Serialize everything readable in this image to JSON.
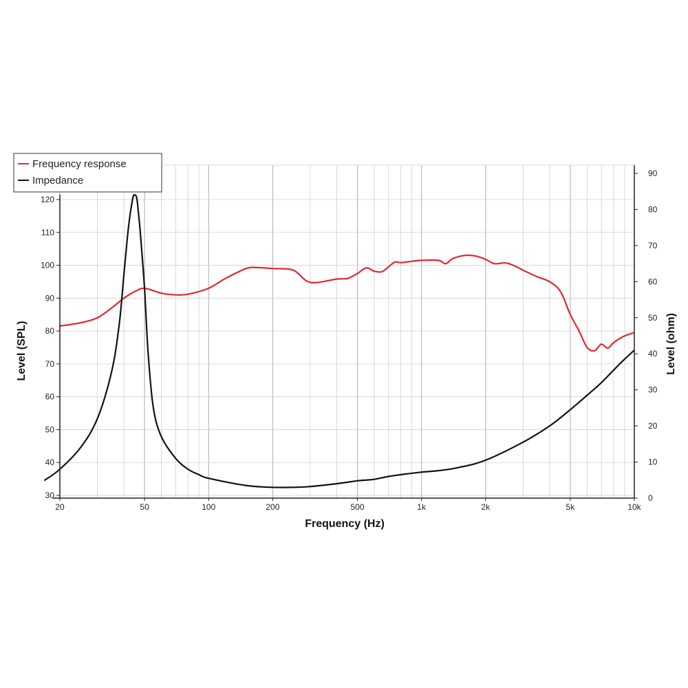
{
  "chart_data": {
    "type": "line",
    "title": "",
    "xlabel": "Frequency (Hz)",
    "ylabel": "Level (SPL)",
    "y2label": "Level (ohm)",
    "xscale": "log",
    "xlim": [
      20,
      10000
    ],
    "ylim": [
      30,
      120
    ],
    "y2lim": [
      0,
      90
    ],
    "grid": true,
    "legend_position": "top-left",
    "x_ticks": [
      {
        "value": 20,
        "label": "20"
      },
      {
        "value": 50,
        "label": "50"
      },
      {
        "value": 100,
        "label": "100"
      },
      {
        "value": 200,
        "label": "200"
      },
      {
        "value": 500,
        "label": "500"
      },
      {
        "value": 1000,
        "label": "1k"
      },
      {
        "value": 2000,
        "label": "2k"
      },
      {
        "value": 5000,
        "label": "5k"
      },
      {
        "value": 10000,
        "label": "10k"
      }
    ],
    "y_ticks": [
      "30",
      "40",
      "50",
      "60",
      "70",
      "80",
      "90",
      "100",
      "110",
      "120"
    ],
    "y2_ticks": [
      "0",
      "10",
      "20",
      "30",
      "40",
      "50",
      "60",
      "70",
      "80",
      "90"
    ],
    "series": [
      {
        "name": "Frequency response",
        "color": "#e0282e",
        "axis": "left",
        "x": [
          20,
          25,
          30,
          35,
          40,
          45,
          50,
          60,
          70,
          80,
          100,
          120,
          150,
          170,
          200,
          250,
          300,
          400,
          450,
          500,
          550,
          600,
          650,
          700,
          750,
          800,
          900,
          1000,
          1200,
          1300,
          1400,
          1600,
          1800,
          2000,
          2200,
          2500,
          2800,
          3000,
          3500,
          4000,
          4500,
          5000,
          5500,
          6000,
          6500,
          7000,
          7500,
          8000,
          9000,
          10000
        ],
        "values": [
          81.5,
          82.5,
          84,
          87,
          90,
          92,
          93,
          91.5,
          91,
          91.2,
          93,
          96,
          99,
          99.3,
          99,
          98.5,
          94.8,
          95.8,
          96,
          97.5,
          99.2,
          98.2,
          98,
          99.5,
          101,
          100.8,
          101.2,
          101.5,
          101.5,
          100.5,
          102,
          103,
          102.8,
          101.8,
          100.5,
          100.7,
          99.5,
          98.5,
          96.5,
          95,
          92,
          85,
          80,
          75,
          74,
          76,
          74.8,
          76.5,
          78.5,
          79.5
        ]
      },
      {
        "name": "Impedance",
        "color": "#111111",
        "axis": "right",
        "x": [
          17,
          20,
          25,
          30,
          35,
          38,
          40,
          42,
          44,
          45,
          46,
          47,
          48,
          50,
          52,
          55,
          60,
          70,
          80,
          90,
          100,
          150,
          200,
          250,
          300,
          400,
          500,
          550,
          600,
          700,
          800,
          1000,
          1200,
          1500,
          2000,
          3000,
          4000,
          5000,
          6000,
          7000,
          8000,
          9000,
          10000
        ],
        "values": [
          5,
          8,
          14,
          22,
          35,
          48,
          62,
          75,
          83,
          84,
          83,
          78,
          72,
          58,
          40,
          25,
          17,
          11,
          8,
          6.5,
          5.5,
          3.5,
          3,
          3,
          3.2,
          4,
          4.8,
          5,
          5.2,
          6,
          6.5,
          7.2,
          7.6,
          8.5,
          10.5,
          15.5,
          20,
          24.5,
          28.5,
          32,
          35.5,
          38.5,
          41
        ]
      }
    ]
  }
}
